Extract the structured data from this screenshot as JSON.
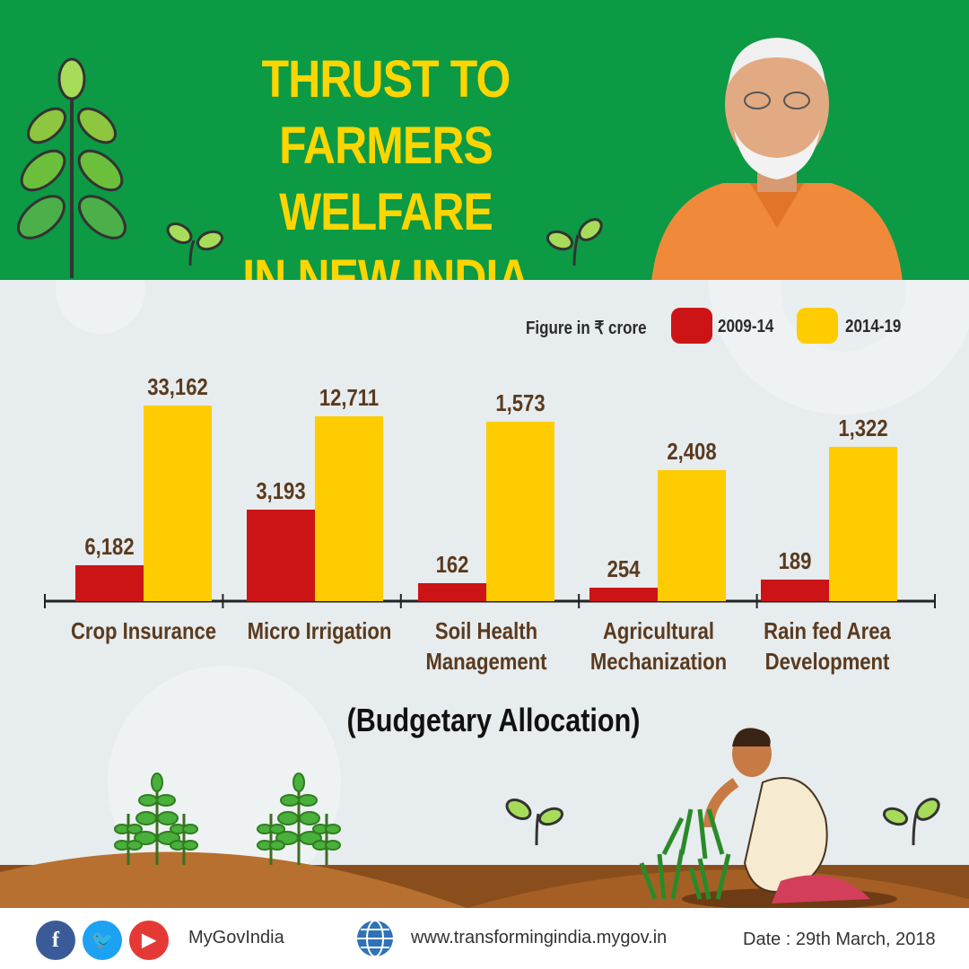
{
  "header": {
    "title_lines": [
      "THRUST TO",
      "FARMERS WELFARE",
      "IN NEW INDIA"
    ]
  },
  "legend": {
    "unit_label": "Figure in ₹ crore",
    "items": [
      {
        "label": "2009-14",
        "color": "#cc1416"
      },
      {
        "label": "2014-19",
        "color": "#fecc00"
      }
    ]
  },
  "chart_data": {
    "type": "bar",
    "categories": [
      "Crop Insurance",
      "Micro Irrigation",
      "Soil Health Management",
      "Agricultural Mechanization",
      "Rain fed Area Development"
    ],
    "category_lines": [
      [
        "Crop Insurance"
      ],
      [
        "Micro Irrigation"
      ],
      [
        "Soil Health",
        "Management"
      ],
      [
        "Agricultural",
        "Mechanization"
      ],
      [
        "Rain fed Area",
        "Development"
      ]
    ],
    "series": [
      {
        "name": "2009-14",
        "values": [
          6182,
          3193,
          162,
          254,
          189
        ],
        "labels": [
          "6,182",
          "3,193",
          "162",
          "254",
          "189"
        ],
        "color": "#cc1416"
      },
      {
        "name": "2014-19",
        "values": [
          33162,
          12711,
          1573,
          2408,
          1322
        ],
        "labels": [
          "33,162",
          "12,711",
          "1,573",
          "2,408",
          "1,322"
        ],
        "color": "#fecc00"
      }
    ],
    "subtitle": "(Budgetary Allocation)",
    "ylabel": "",
    "grid": false,
    "legend_position": "top-right"
  },
  "footer": {
    "handle": "MyGovIndia",
    "url": "www.transformingindia.mygov.in",
    "date": "Date : 29th March, 2018",
    "social_icons": [
      "facebook-icon",
      "twitter-icon",
      "youtube-icon"
    ]
  },
  "colors": {
    "header_green": "#0c9a44",
    "title_yellow": "#ffd500",
    "background": "#e7ecee",
    "soil": "#8a4e1d"
  }
}
